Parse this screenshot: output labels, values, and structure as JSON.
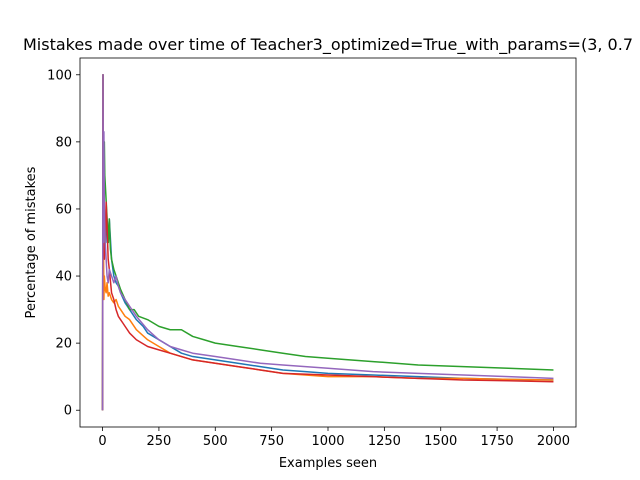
{
  "chart_data": {
    "type": "line",
    "title": "Mistakes made over time of Teacher3_optimized=True_with_params=(3, 0.7",
    "xlabel": "Examples seen",
    "ylabel": "Percentage of mistakes",
    "xlim": [
      -100,
      2100
    ],
    "ylim": [
      -5,
      105
    ],
    "xticks": [
      0,
      250,
      500,
      750,
      1000,
      1250,
      1500,
      1750,
      2000
    ],
    "yticks": [
      0,
      20,
      40,
      60,
      80,
      100
    ],
    "grid": false,
    "legend": "none",
    "series": [
      {
        "color": "#1f77b4",
        "x": [
          0,
          2,
          4,
          6,
          8,
          12,
          16,
          20,
          25,
          30,
          40,
          50,
          60,
          70,
          80,
          100,
          120,
          150,
          180,
          200,
          250,
          300,
          350,
          400,
          500,
          600,
          700,
          800,
          900,
          1000,
          1200,
          1400,
          1600,
          1800,
          2000
        ],
        "y": [
          0,
          100,
          50,
          66,
          60,
          55,
          57,
          50,
          52,
          57,
          45,
          40,
          38,
          37,
          35,
          32,
          30,
          27,
          25,
          23,
          21,
          19,
          17,
          16,
          15,
          14,
          13,
          12,
          11.5,
          11,
          10.5,
          10,
          9.5,
          9.2,
          9
        ]
      },
      {
        "color": "#ff7f0e",
        "x": [
          0,
          2,
          4,
          6,
          8,
          12,
          16,
          20,
          25,
          30,
          40,
          50,
          60,
          70,
          80,
          100,
          120,
          150,
          200,
          250,
          300,
          400,
          500,
          600,
          700,
          800,
          1000,
          1200,
          1400,
          1600,
          1800,
          2000
        ],
        "y": [
          0,
          100,
          50,
          33,
          40,
          36,
          35,
          38,
          34,
          35,
          33,
          32,
          33,
          31,
          30,
          28,
          27,
          24,
          21,
          19,
          17,
          15,
          14,
          13,
          12,
          11,
          10,
          10,
          9.5,
          9.5,
          9.2,
          9
        ]
      },
      {
        "color": "#2ca02c",
        "x": [
          0,
          2,
          4,
          6,
          8,
          10,
          14,
          18,
          22,
          26,
          30,
          35,
          40,
          50,
          60,
          70,
          80,
          100,
          120,
          140,
          160,
          200,
          250,
          300,
          350,
          400,
          450,
          500,
          600,
          700,
          800,
          900,
          1000,
          1200,
          1400,
          1600,
          1800,
          2000
        ],
        "y": [
          0,
          100,
          50,
          66,
          80,
          70,
          65,
          60,
          55,
          50,
          57,
          48,
          45,
          42,
          40,
          38,
          36,
          33,
          30,
          30,
          28,
          27,
          25,
          24,
          24,
          22,
          21,
          20,
          19,
          18,
          17,
          16,
          15.5,
          14.5,
          13.5,
          13,
          12.5,
          12
        ]
      },
      {
        "color": "#d62728",
        "x": [
          0,
          2,
          4,
          6,
          8,
          12,
          16,
          20,
          25,
          30,
          40,
          50,
          60,
          70,
          80,
          90,
          100,
          120,
          150,
          200,
          250,
          300,
          400,
          500,
          600,
          700,
          800,
          1000,
          1200,
          1400,
          1600,
          1800,
          2000
        ],
        "y": [
          0,
          100,
          50,
          50,
          45,
          50,
          62,
          55,
          45,
          42,
          35,
          33,
          30,
          28,
          27,
          26,
          25,
          23,
          21,
          19,
          18,
          17,
          15,
          14,
          13,
          12,
          11,
          10.5,
          10,
          9.5,
          9,
          8.8,
          8.5
        ]
      },
      {
        "color": "#9467bd",
        "x": [
          0,
          2,
          4,
          6,
          8,
          12,
          16,
          20,
          25,
          30,
          40,
          50,
          60,
          70,
          80,
          100,
          120,
          150,
          200,
          250,
          300,
          350,
          400,
          500,
          600,
          700,
          800,
          900,
          1000,
          1200,
          1400,
          1600,
          1800,
          2000
        ],
        "y": [
          0,
          100,
          50,
          83,
          60,
          50,
          45,
          40,
          38,
          42,
          40,
          38,
          40,
          37,
          35,
          33,
          31,
          28,
          24,
          21,
          19,
          18,
          17,
          16,
          15,
          14,
          13.5,
          13,
          12.5,
          11.5,
          11,
          10.5,
          10,
          9.5
        ]
      }
    ]
  }
}
